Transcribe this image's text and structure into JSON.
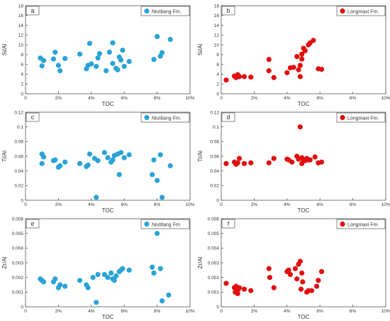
{
  "chart_data": [
    {
      "panel": "a",
      "type": "scatter",
      "xlabel": "TOC",
      "ylabel": "Si/Al",
      "xlim": [
        0,
        10
      ],
      "ylim": [
        0,
        18
      ],
      "xticks": [
        "0",
        "2%",
        "4%",
        "6%",
        "8%",
        "10%"
      ],
      "yticks": [
        "0",
        "2",
        "4",
        "6",
        "8",
        "10",
        "12",
        "14",
        "16",
        "18"
      ],
      "legend_position": "top-right",
      "series": [
        {
          "name": "Niutitang Fm.",
          "color": "#29a3d6",
          "points": [
            [
              0.9,
              7.3
            ],
            [
              1.0,
              5.7
            ],
            [
              1.1,
              6.8
            ],
            [
              1.7,
              7.1
            ],
            [
              1.8,
              8.5
            ],
            [
              2.0,
              5.8
            ],
            [
              2.1,
              4.7
            ],
            [
              2.4,
              7.2
            ],
            [
              3.3,
              8.1
            ],
            [
              3.7,
              5.1
            ],
            [
              3.8,
              5.8
            ],
            [
              3.9,
              10.3
            ],
            [
              4.0,
              6.1
            ],
            [
              4.3,
              5.6
            ],
            [
              4.4,
              7.3
            ],
            [
              4.5,
              8.2
            ],
            [
              4.9,
              4.7
            ],
            [
              5.1,
              8.5
            ],
            [
              5.3,
              10.4
            ],
            [
              5.3,
              6.2
            ],
            [
              5.5,
              5.2
            ],
            [
              5.6,
              4.9
            ],
            [
              5.7,
              7.5
            ],
            [
              5.8,
              6.9
            ],
            [
              5.9,
              8.9
            ],
            [
              6.0,
              5.6
            ],
            [
              6.3,
              6.6
            ],
            [
              7.8,
              7.0
            ],
            [
              8.0,
              11.7
            ],
            [
              8.2,
              7.7
            ],
            [
              8.3,
              8.4
            ],
            [
              8.8,
              11.1
            ]
          ]
        }
      ]
    },
    {
      "panel": "b",
      "type": "scatter",
      "xlabel": "TOC",
      "ylabel": "Si/Al",
      "xlim": [
        0,
        10
      ],
      "ylim": [
        0,
        18
      ],
      "xticks": [
        "0",
        "2%",
        "4%",
        "6%",
        "8%",
        "10%"
      ],
      "yticks": [
        "0",
        "2",
        "4",
        "6",
        "8",
        "10",
        "12",
        "14",
        "16",
        "18"
      ],
      "legend_position": "top-right",
      "series": [
        {
          "name": "Longmaxi Fm.",
          "color": "#e01010",
          "points": [
            [
              0.3,
              2.8
            ],
            [
              0.8,
              3.6
            ],
            [
              0.9,
              3.3
            ],
            [
              1.0,
              3.9
            ],
            [
              1.1,
              3.5
            ],
            [
              1.4,
              3.5
            ],
            [
              1.8,
              3.4
            ],
            [
              2.9,
              7.0
            ],
            [
              2.9,
              4.7
            ],
            [
              3.2,
              3.3
            ],
            [
              4.0,
              4.3
            ],
            [
              4.2,
              5.3
            ],
            [
              4.4,
              5.4
            ],
            [
              4.6,
              7.6
            ],
            [
              4.7,
              4.9
            ],
            [
              4.8,
              3.5
            ],
            [
              4.8,
              5.8
            ],
            [
              4.9,
              7.1
            ],
            [
              4.9,
              8.1
            ],
            [
              5.0,
              9.3
            ],
            [
              5.1,
              8.8
            ],
            [
              5.3,
              10.0
            ],
            [
              5.4,
              10.4
            ],
            [
              5.6,
              10.9
            ],
            [
              5.9,
              5.1
            ],
            [
              6.1,
              5.0
            ]
          ]
        }
      ]
    },
    {
      "panel": "c",
      "type": "scatter",
      "xlabel": "TOC",
      "ylabel": "Ti/Al",
      "xlim": [
        0,
        10
      ],
      "ylim": [
        0,
        0.12
      ],
      "xticks": [
        "0",
        "2%",
        "4%",
        "6%",
        "8%",
        "10%"
      ],
      "yticks": [
        "0",
        "0.02",
        "0.04",
        "0.06",
        "0.08",
        "0.1",
        "0.12"
      ],
      "legend_position": "top-right",
      "series": [
        {
          "name": "Niutitang Fm.",
          "color": "#29a3d6",
          "points": [
            [
              1.0,
              0.063
            ],
            [
              1.1,
              0.059
            ],
            [
              1.0,
              0.05
            ],
            [
              1.7,
              0.054
            ],
            [
              1.8,
              0.055
            ],
            [
              2.0,
              0.045
            ],
            [
              2.1,
              0.047
            ],
            [
              2.4,
              0.052
            ],
            [
              3.3,
              0.05
            ],
            [
              3.7,
              0.046
            ],
            [
              3.8,
              0.048
            ],
            [
              3.9,
              0.063
            ],
            [
              4.2,
              0.057
            ],
            [
              4.3,
              0.004
            ],
            [
              4.4,
              0.054
            ],
            [
              4.8,
              0.065
            ],
            [
              5.0,
              0.058
            ],
            [
              5.2,
              0.052
            ],
            [
              5.3,
              0.055
            ],
            [
              5.4,
              0.061
            ],
            [
              5.6,
              0.063
            ],
            [
              5.7,
              0.035
            ],
            [
              5.8,
              0.065
            ],
            [
              6.0,
              0.058
            ],
            [
              6.3,
              0.062
            ],
            [
              7.7,
              0.035
            ],
            [
              7.8,
              0.055
            ],
            [
              8.0,
              0.027
            ],
            [
              8.2,
              0.062
            ],
            [
              8.3,
              0.004
            ],
            [
              8.8,
              0.047
            ]
          ]
        }
      ]
    },
    {
      "panel": "d",
      "type": "scatter",
      "xlabel": "TOC",
      "ylabel": "Ti/Al",
      "xlim": [
        0,
        10
      ],
      "ylim": [
        0,
        0.12
      ],
      "xticks": [
        "0",
        "2%",
        "4%",
        "6%",
        "8%",
        "10%"
      ],
      "yticks": [
        "0",
        "0.02",
        "0.04",
        "0.06",
        "0.08",
        "0.1",
        "0.12"
      ],
      "legend_position": "top-right",
      "series": [
        {
          "name": "Longmaxi Fm.",
          "color": "#e01010",
          "points": [
            [
              0.3,
              0.05
            ],
            [
              0.8,
              0.052
            ],
            [
              0.9,
              0.049
            ],
            [
              1.0,
              0.051
            ],
            [
              1.1,
              0.057
            ],
            [
              1.4,
              0.05
            ],
            [
              1.8,
              0.051
            ],
            [
              2.9,
              0.051
            ],
            [
              3.2,
              0.057
            ],
            [
              4.0,
              0.056
            ],
            [
              4.1,
              0.055
            ],
            [
              4.3,
              0.052
            ],
            [
              4.6,
              0.06
            ],
            [
              4.7,
              0.056
            ],
            [
              4.8,
              0.1
            ],
            [
              4.9,
              0.05
            ],
            [
              4.9,
              0.058
            ],
            [
              5.0,
              0.055
            ],
            [
              5.1,
              0.054
            ],
            [
              5.2,
              0.057
            ],
            [
              5.3,
              0.055
            ],
            [
              5.4,
              0.055
            ],
            [
              5.7,
              0.059
            ],
            [
              5.9,
              0.051
            ],
            [
              6.1,
              0.052
            ]
          ]
        }
      ]
    },
    {
      "panel": "e",
      "type": "scatter",
      "xlabel": "TOC",
      "ylabel": "Zr/Al",
      "xlim": [
        0,
        10
      ],
      "ylim": [
        0,
        0.006
      ],
      "xticks": [
        "0",
        "2%",
        "4%",
        "6%",
        "8%",
        "10%"
      ],
      "yticks": [
        "0",
        "0.001",
        "0.002",
        "0.003",
        "0.004",
        "0.005",
        "0.006"
      ],
      "legend_position": "top-right",
      "series": [
        {
          "name": "Niutitang Fm.",
          "color": "#29a3d6",
          "points": [
            [
              0.9,
              0.0019
            ],
            [
              1.0,
              0.0018
            ],
            [
              1.1,
              0.0017
            ],
            [
              1.7,
              0.0017
            ],
            [
              1.8,
              0.0019
            ],
            [
              2.0,
              0.0013
            ],
            [
              2.1,
              0.0015
            ],
            [
              2.4,
              0.0014
            ],
            [
              3.3,
              0.0018
            ],
            [
              3.7,
              0.0015
            ],
            [
              3.8,
              0.0013
            ],
            [
              4.1,
              0.002
            ],
            [
              4.3,
              0.0003
            ],
            [
              4.4,
              0.0022
            ],
            [
              4.8,
              0.0022
            ],
            [
              5.0,
              0.002
            ],
            [
              5.2,
              0.0023
            ],
            [
              5.3,
              0.0019
            ],
            [
              5.4,
              0.0018
            ],
            [
              5.5,
              0.0021
            ],
            [
              5.7,
              0.0024
            ],
            [
              5.8,
              0.0025
            ],
            [
              5.9,
              0.0026
            ],
            [
              6.3,
              0.0025
            ],
            [
              7.7,
              0.0027
            ],
            [
              7.8,
              0.0023
            ],
            [
              8.0,
              0.005
            ],
            [
              8.2,
              0.0026
            ],
            [
              8.3,
              0.0004
            ],
            [
              8.7,
              0.0008
            ]
          ]
        }
      ]
    },
    {
      "panel": "f",
      "type": "scatter",
      "xlabel": "TOC",
      "ylabel": "Zr/Al",
      "xlim": [
        0,
        10
      ],
      "ylim": [
        0,
        0.006
      ],
      "xticks": [
        "0",
        "2%",
        "4%",
        "6%",
        "8%",
        "10%"
      ],
      "yticks": [
        "0",
        "0.001",
        "0.002",
        "0.003",
        "0.004",
        "0.005",
        "0.006"
      ],
      "legend_position": "top-right",
      "series": [
        {
          "name": "Longmaxi Fm.",
          "color": "#e01010",
          "points": [
            [
              0.3,
              0.0016
            ],
            [
              0.8,
              0.0013
            ],
            [
              0.85,
              0.001
            ],
            [
              0.9,
              0.0014
            ],
            [
              1.0,
              0.0009
            ],
            [
              1.05,
              0.0012
            ],
            [
              1.1,
              0.0013
            ],
            [
              1.4,
              0.0012
            ],
            [
              1.8,
              0.0011
            ],
            [
              2.9,
              0.0026
            ],
            [
              2.95,
              0.002
            ],
            [
              3.2,
              0.0013
            ],
            [
              4.0,
              0.0024
            ],
            [
              4.1,
              0.0025
            ],
            [
              4.2,
              0.0022
            ],
            [
              4.5,
              0.0026
            ],
            [
              4.6,
              0.0019
            ],
            [
              4.7,
              0.0029
            ],
            [
              4.8,
              0.0031
            ],
            [
              4.85,
              0.0012
            ],
            [
              4.9,
              0.0023
            ],
            [
              4.95,
              0.0017
            ],
            [
              5.2,
              0.001
            ],
            [
              5.3,
              0.0011
            ],
            [
              5.5,
              0.0011
            ],
            [
              5.8,
              0.0014
            ],
            [
              5.9,
              0.0018
            ],
            [
              6.1,
              0.0024
            ]
          ]
        }
      ]
    }
  ]
}
